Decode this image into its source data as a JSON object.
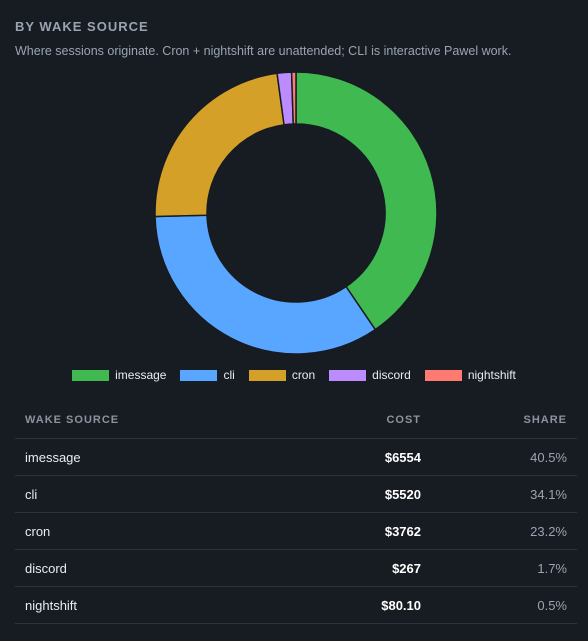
{
  "section": {
    "title": "BY WAKE SOURCE",
    "subtitle": "Where sessions originate. Cron + nightshift are unattended; CLI is interactive Pawel work."
  },
  "chart_data": {
    "type": "pie",
    "donut": true,
    "categories": [
      "imessage",
      "cli",
      "cron",
      "discord",
      "nightshift"
    ],
    "values": [
      6554,
      5520,
      3762,
      267,
      80.1
    ],
    "colors": [
      "#3fb950",
      "#58a6ff",
      "#d4a027",
      "#bc8cff",
      "#ff7b72"
    ],
    "legend_position": "bottom"
  },
  "legend": [
    {
      "label": "imessage",
      "color": "#3fb950"
    },
    {
      "label": "cli",
      "color": "#58a6ff"
    },
    {
      "label": "cron",
      "color": "#d4a027"
    },
    {
      "label": "discord",
      "color": "#bc8cff"
    },
    {
      "label": "nightshift",
      "color": "#ff7b72"
    }
  ],
  "table": {
    "headers": {
      "source": "WAKE SOURCE",
      "cost": "COST",
      "share": "SHARE"
    },
    "rows": [
      {
        "source": "imessage",
        "cost": "$6554",
        "share": "40.5%"
      },
      {
        "source": "cli",
        "cost": "$5520",
        "share": "34.1%"
      },
      {
        "source": "cron",
        "cost": "$3762",
        "share": "23.2%"
      },
      {
        "source": "discord",
        "cost": "$267",
        "share": "1.7%"
      },
      {
        "source": "nightshift",
        "cost": "$80.10",
        "share": "0.5%"
      }
    ]
  }
}
